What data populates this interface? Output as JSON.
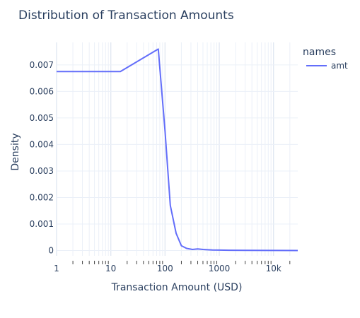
{
  "chart_data": {
    "type": "line",
    "title": "Distribution of Transaction Amounts",
    "xlabel": "Transaction Amount (USD)",
    "ylabel": "Density",
    "x_scale": "log",
    "xlim": [
      1,
      28000
    ],
    "ylim": [
      -0.0002,
      0.00785
    ],
    "grid": true,
    "legend": {
      "title": "names",
      "placement": "top-right"
    },
    "x_major_ticks": [
      {
        "value": 1,
        "label": "1"
      },
      {
        "value": 10,
        "label": "10"
      },
      {
        "value": 100,
        "label": "100"
      },
      {
        "value": 1000,
        "label": "1000"
      },
      {
        "value": 10000,
        "label": "10k"
      }
    ],
    "y_ticks": [
      {
        "value": 0,
        "label": "0"
      },
      {
        "value": 0.001,
        "label": "0.001"
      },
      {
        "value": 0.002,
        "label": "0.002"
      },
      {
        "value": 0.003,
        "label": "0.003"
      },
      {
        "value": 0.004,
        "label": "0.004"
      },
      {
        "value": 0.005,
        "label": "0.005"
      },
      {
        "value": 0.006,
        "label": "0.006"
      },
      {
        "value": 0.007,
        "label": "0.007"
      }
    ],
    "series": [
      {
        "name": "amt",
        "color": "#636efa",
        "x": [
          1,
          15,
          75,
          100,
          125,
          160,
          200,
          250,
          320,
          400,
          500,
          600,
          750,
          1000,
          1500,
          3000,
          10000,
          28000
        ],
        "y": [
          0.00675,
          0.00675,
          0.0076,
          0.0045,
          0.0017,
          0.00065,
          0.00018,
          8e-05,
          4e-05,
          6e-05,
          4e-05,
          3e-05,
          2e-05,
          1.5e-05,
          1e-05,
          5e-06,
          2e-06,
          1e-06
        ]
      }
    ]
  }
}
